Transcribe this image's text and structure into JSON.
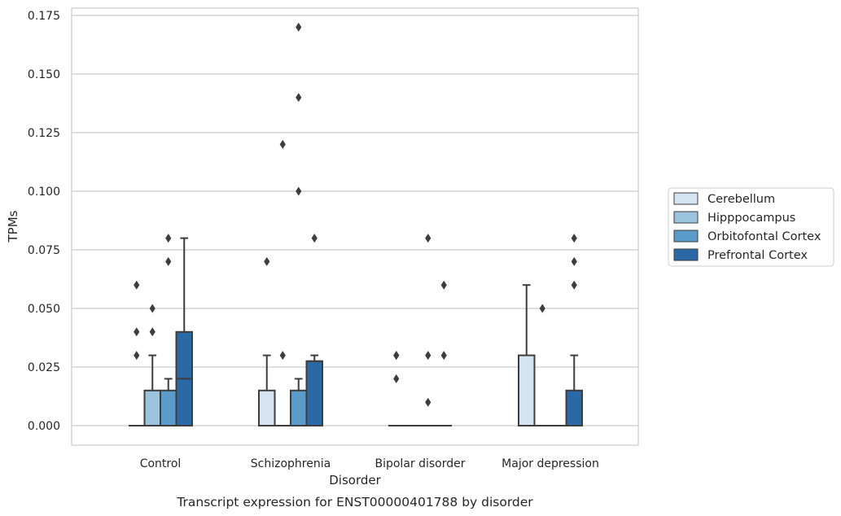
{
  "chart_data": {
    "type": "box",
    "caption": "Transcript expression for ENST00000401788 by disorder",
    "xlabel": "Disorder",
    "ylabel": "TPMs",
    "ylim": [
      -0.0085,
      0.1785
    ],
    "yticks": [
      0.0,
      0.025,
      0.05,
      0.075,
      0.1,
      0.125,
      0.15,
      0.175
    ],
    "ytick_labels": [
      "0.000",
      "0.025",
      "0.050",
      "0.075",
      "0.100",
      "0.125",
      "0.150",
      "0.175"
    ],
    "grid": "horizontal",
    "legend_position": "right",
    "categories": [
      "Control",
      "Schizophrenia",
      "Bipolar disorder",
      "Major depression"
    ],
    "series": [
      {
        "name": "Cerebellum",
        "color": "#d6e4f2",
        "boxes": [
          {
            "q1": 0,
            "median": 0,
            "q3": 0,
            "whisker_low": 0,
            "whisker_high": 0,
            "outliers": [
              0.03,
              0.04,
              0.06
            ]
          },
          {
            "q1": 0,
            "median": 0,
            "q3": 0.015,
            "whisker_low": 0,
            "whisker_high": 0.03,
            "outliers": [
              0.07
            ]
          },
          {
            "q1": 0,
            "median": 0,
            "q3": 0,
            "whisker_low": 0,
            "whisker_high": 0,
            "outliers": [
              0.02,
              0.03,
              0.03
            ]
          },
          {
            "q1": 0,
            "median": 0,
            "q3": 0.03,
            "whisker_low": 0,
            "whisker_high": 0.06,
            "outliers": []
          }
        ]
      },
      {
        "name": "Hipppocampus",
        "color": "#9cc3de",
        "boxes": [
          {
            "q1": 0,
            "median": 0,
            "q3": 0.015,
            "whisker_low": 0,
            "whisker_high": 0.03,
            "outliers": [
              0.04,
              0.05
            ]
          },
          {
            "q1": 0,
            "median": 0,
            "q3": 0,
            "whisker_low": 0,
            "whisker_high": 0,
            "outliers": [
              0.03,
              0.12
            ]
          },
          {
            "q1": 0,
            "median": 0,
            "q3": 0,
            "whisker_low": 0,
            "whisker_high": 0,
            "outliers": []
          },
          {
            "q1": 0,
            "median": 0,
            "q3": 0,
            "whisker_low": 0,
            "whisker_high": 0,
            "outliers": [
              0.05
            ]
          }
        ]
      },
      {
        "name": "Orbitofontal Cortex",
        "color": "#5a9bc9",
        "boxes": [
          {
            "q1": 0,
            "median": 0,
            "q3": 0.015,
            "whisker_low": 0,
            "whisker_high": 0.02,
            "outliers": [
              0.07,
              0.08
            ]
          },
          {
            "q1": 0,
            "median": 0,
            "q3": 0.015,
            "whisker_low": 0,
            "whisker_high": 0.02,
            "outliers": [
              0.1,
              0.14,
              0.17
            ]
          },
          {
            "q1": 0,
            "median": 0,
            "q3": 0,
            "whisker_low": 0,
            "whisker_high": 0,
            "outliers": [
              0.01,
              0.03,
              0.08
            ]
          },
          {
            "q1": 0,
            "median": 0,
            "q3": 0,
            "whisker_low": 0,
            "whisker_high": 0,
            "outliers": []
          }
        ]
      },
      {
        "name": "Prefrontal Cortex",
        "color": "#2b69a6",
        "boxes": [
          {
            "q1": 0,
            "median": 0.02,
            "q3": 0.04,
            "whisker_low": 0,
            "whisker_high": 0.08,
            "outliers": []
          },
          {
            "q1": 0,
            "median": 0.0275,
            "q3": 0.0275,
            "whisker_low": 0,
            "whisker_high": 0.03,
            "outliers": [
              0.08
            ]
          },
          {
            "q1": 0,
            "median": 0,
            "q3": 0,
            "whisker_low": 0,
            "whisker_high": 0,
            "outliers": [
              0.03,
              0.06
            ]
          },
          {
            "q1": 0,
            "median": 0,
            "q3": 0.015,
            "whisker_low": 0,
            "whisker_high": 0.03,
            "outliers": [
              0.06,
              0.07,
              0.08
            ]
          }
        ]
      }
    ]
  }
}
